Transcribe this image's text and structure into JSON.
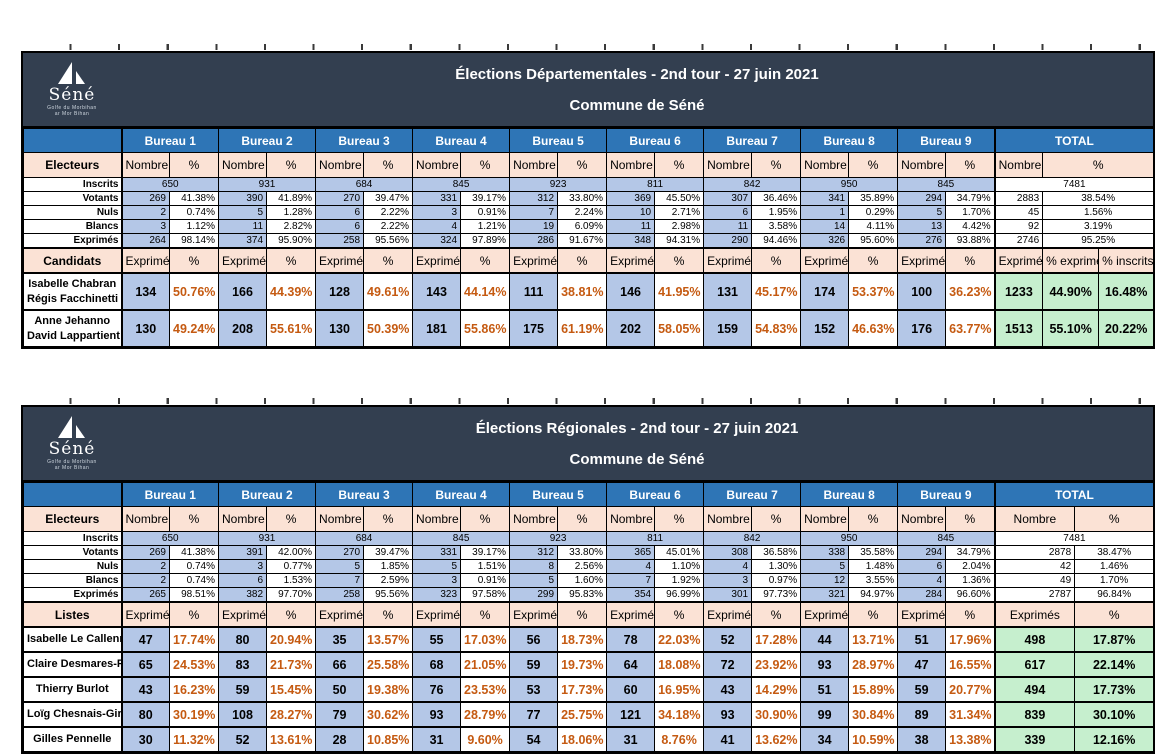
{
  "colors": {
    "header_bg": "#333F50",
    "bureau_header_bg": "#2E75B6",
    "subheader_bg": "#FBE2D5",
    "count_cell_bg": "#B4C7E7",
    "total_cell_bg": "#C6EFCE",
    "percent_text": "#C55A11"
  },
  "logo": {
    "icon": "sailboat-icon",
    "name": "Séné",
    "sub1": "Golfe du Morbihan",
    "sub2": "ar Mor Bihan"
  },
  "tables": [
    {
      "title": "Élections Départementales - 2nd tour - 27 juin 2021",
      "subtitle": "Commune de Séné",
      "bureau_labels": [
        "Bureau 1",
        "Bureau 2",
        "Bureau 3",
        "Bureau 4",
        "Bureau 5",
        "Bureau 6",
        "Bureau 7",
        "Bureau 8",
        "Bureau 9"
      ],
      "total_label": "TOTAL",
      "electors_header": {
        "label": "Electeurs",
        "nombre": "Nombre",
        "pct": "%"
      },
      "elector_rows": [
        {
          "label": "Inscrits",
          "values": [
            "650",
            "931",
            "684",
            "845",
            "923",
            "811",
            "842",
            "950",
            "845"
          ],
          "total_nombre": "7481"
        },
        {
          "label": "Votants",
          "pairs": [
            [
              "269",
              "41.38%"
            ],
            [
              "390",
              "41.89%"
            ],
            [
              "270",
              "39.47%"
            ],
            [
              "331",
              "39.17%"
            ],
            [
              "312",
              "33.80%"
            ],
            [
              "369",
              "45.50%"
            ],
            [
              "307",
              "36.46%"
            ],
            [
              "341",
              "35.89%"
            ],
            [
              "294",
              "34.79%"
            ]
          ],
          "total_nombre": "2883",
          "total_pct": "38.54%"
        },
        {
          "label": "Nuls",
          "pairs": [
            [
              "2",
              "0.74%"
            ],
            [
              "5",
              "1.28%"
            ],
            [
              "6",
              "2.22%"
            ],
            [
              "3",
              "0.91%"
            ],
            [
              "7",
              "2.24%"
            ],
            [
              "10",
              "2.71%"
            ],
            [
              "6",
              "1.95%"
            ],
            [
              "1",
              "0.29%"
            ],
            [
              "5",
              "1.70%"
            ]
          ],
          "total_nombre": "45",
          "total_pct": "1.56%"
        },
        {
          "label": "Blancs",
          "pairs": [
            [
              "3",
              "1.12%"
            ],
            [
              "11",
              "2.82%"
            ],
            [
              "6",
              "2.22%"
            ],
            [
              "4",
              "1.21%"
            ],
            [
              "19",
              "6.09%"
            ],
            [
              "11",
              "2.98%"
            ],
            [
              "11",
              "3.58%"
            ],
            [
              "14",
              "4.11%"
            ],
            [
              "13",
              "4.42%"
            ]
          ],
          "total_nombre": "92",
          "total_pct": "3.19%"
        },
        {
          "label": "Exprimés",
          "pairs": [
            [
              "264",
              "98.14%"
            ],
            [
              "374",
              "95.90%"
            ],
            [
              "258",
              "95.56%"
            ],
            [
              "324",
              "97.89%"
            ],
            [
              "286",
              "91.67%"
            ],
            [
              "348",
              "94.31%"
            ],
            [
              "290",
              "94.46%"
            ],
            [
              "326",
              "95.60%"
            ],
            [
              "276",
              "93.88%"
            ]
          ],
          "total_nombre": "2746",
          "total_pct": "95.25%"
        }
      ],
      "candidates_header": {
        "label": "Candidats",
        "exprimes": "Exprimés",
        "pct": "%",
        "total_cols": [
          "Exprimés",
          "% exprimés",
          "% inscrits"
        ]
      },
      "candidate_rows": [
        {
          "name_lines": [
            "Isabelle Chabran",
            "Régis Facchinetti"
          ],
          "pairs": [
            [
              "134",
              "50.76%"
            ],
            [
              "166",
              "44.39%"
            ],
            [
              "128",
              "49.61%"
            ],
            [
              "143",
              "44.14%"
            ],
            [
              "111",
              "38.81%"
            ],
            [
              "146",
              "41.95%"
            ],
            [
              "131",
              "45.17%"
            ],
            [
              "174",
              "53.37%"
            ],
            [
              "100",
              "36.23%"
            ]
          ],
          "total": [
            "1233",
            "44.90%",
            "16.48%"
          ]
        },
        {
          "name_lines": [
            "Anne Jehanno",
            "David Lappartient"
          ],
          "pairs": [
            [
              "130",
              "49.24%"
            ],
            [
              "208",
              "55.61%"
            ],
            [
              "130",
              "50.39%"
            ],
            [
              "181",
              "55.86%"
            ],
            [
              "175",
              "61.19%"
            ],
            [
              "202",
              "58.05%"
            ],
            [
              "159",
              "54.83%"
            ],
            [
              "152",
              "46.63%"
            ],
            [
              "176",
              "63.77%"
            ]
          ],
          "total": [
            "1513",
            "55.10%",
            "20.22%"
          ]
        }
      ]
    },
    {
      "title": "Élections Régionales - 2nd tour - 27 juin 2021",
      "subtitle": "Commune de Séné",
      "bureau_labels": [
        "Bureau 1",
        "Bureau 2",
        "Bureau 3",
        "Bureau 4",
        "Bureau 5",
        "Bureau 6",
        "Bureau 7",
        "Bureau 8",
        "Bureau 9"
      ],
      "total_label": "TOTAL",
      "electors_header": {
        "label": "Electeurs",
        "nombre": "Nombre",
        "pct": "%"
      },
      "elector_rows": [
        {
          "label": "Inscrits",
          "values": [
            "650",
            "931",
            "684",
            "845",
            "923",
            "811",
            "842",
            "950",
            "845"
          ],
          "total_nombre": "7481"
        },
        {
          "label": "Votants",
          "pairs": [
            [
              "269",
              "41.38%"
            ],
            [
              "391",
              "42.00%"
            ],
            [
              "270",
              "39.47%"
            ],
            [
              "331",
              "39.17%"
            ],
            [
              "312",
              "33.80%"
            ],
            [
              "365",
              "45.01%"
            ],
            [
              "308",
              "36.58%"
            ],
            [
              "338",
              "35.58%"
            ],
            [
              "294",
              "34.79%"
            ]
          ],
          "total_nombre": "2878",
          "total_pct": "38.47%"
        },
        {
          "label": "Nuls",
          "pairs": [
            [
              "2",
              "0.74%"
            ],
            [
              "3",
              "0.77%"
            ],
            [
              "5",
              "1.85%"
            ],
            [
              "5",
              "1.51%"
            ],
            [
              "8",
              "2.56%"
            ],
            [
              "4",
              "1.10%"
            ],
            [
              "4",
              "1.30%"
            ],
            [
              "5",
              "1.48%"
            ],
            [
              "6",
              "2.04%"
            ]
          ],
          "total_nombre": "42",
          "total_pct": "1.46%"
        },
        {
          "label": "Blancs",
          "pairs": [
            [
              "2",
              "0.74%"
            ],
            [
              "6",
              "1.53%"
            ],
            [
              "7",
              "2.59%"
            ],
            [
              "3",
              "0.91%"
            ],
            [
              "5",
              "1.60%"
            ],
            [
              "7",
              "1.92%"
            ],
            [
              "3",
              "0.97%"
            ],
            [
              "12",
              "3.55%"
            ],
            [
              "4",
              "1.36%"
            ]
          ],
          "total_nombre": "49",
          "total_pct": "1.70%"
        },
        {
          "label": "Exprimés",
          "pairs": [
            [
              "265",
              "98.51%"
            ],
            [
              "382",
              "97.70%"
            ],
            [
              "258",
              "95.56%"
            ],
            [
              "323",
              "97.58%"
            ],
            [
              "299",
              "95.83%"
            ],
            [
              "354",
              "96.99%"
            ],
            [
              "301",
              "97.73%"
            ],
            [
              "321",
              "94.97%"
            ],
            [
              "284",
              "96.60%"
            ]
          ],
          "total_nombre": "2787",
          "total_pct": "96.84%"
        }
      ],
      "candidates_header": {
        "label": "Listes",
        "exprimes": "Exprimés",
        "pct": "%",
        "total_cols": [
          "Exprimés",
          "%"
        ]
      },
      "candidate_rows": [
        {
          "name_lines": [
            "Isabelle Le Callennec"
          ],
          "pairs": [
            [
              "47",
              "17.74%"
            ],
            [
              "80",
              "20.94%"
            ],
            [
              "35",
              "13.57%"
            ],
            [
              "55",
              "17.03%"
            ],
            [
              "56",
              "18.73%"
            ],
            [
              "78",
              "22.03%"
            ],
            [
              "52",
              "17.28%"
            ],
            [
              "44",
              "13.71%"
            ],
            [
              "51",
              "17.96%"
            ]
          ],
          "total": [
            "498",
            "17.87%"
          ]
        },
        {
          "name_lines": [
            "Claire Desmares-Poirier"
          ],
          "pairs": [
            [
              "65",
              "24.53%"
            ],
            [
              "83",
              "21.73%"
            ],
            [
              "66",
              "25.58%"
            ],
            [
              "68",
              "21.05%"
            ],
            [
              "59",
              "19.73%"
            ],
            [
              "64",
              "18.08%"
            ],
            [
              "72",
              "23.92%"
            ],
            [
              "93",
              "28.97%"
            ],
            [
              "47",
              "16.55%"
            ]
          ],
          "total": [
            "617",
            "22.14%"
          ]
        },
        {
          "name_lines": [
            "Thierry Burlot"
          ],
          "pairs": [
            [
              "43",
              "16.23%"
            ],
            [
              "59",
              "15.45%"
            ],
            [
              "50",
              "19.38%"
            ],
            [
              "76",
              "23.53%"
            ],
            [
              "53",
              "17.73%"
            ],
            [
              "60",
              "16.95%"
            ],
            [
              "43",
              "14.29%"
            ],
            [
              "51",
              "15.89%"
            ],
            [
              "59",
              "20.77%"
            ]
          ],
          "total": [
            "494",
            "17.73%"
          ]
        },
        {
          "name_lines": [
            "Loïg Chesnais-Girard"
          ],
          "pairs": [
            [
              "80",
              "30.19%"
            ],
            [
              "108",
              "28.27%"
            ],
            [
              "79",
              "30.62%"
            ],
            [
              "93",
              "28.79%"
            ],
            [
              "77",
              "25.75%"
            ],
            [
              "121",
              "34.18%"
            ],
            [
              "93",
              "30.90%"
            ],
            [
              "99",
              "30.84%"
            ],
            [
              "89",
              "31.34%"
            ]
          ],
          "total": [
            "839",
            "30.10%"
          ]
        },
        {
          "name_lines": [
            "Gilles Pennelle"
          ],
          "pairs": [
            [
              "30",
              "11.32%"
            ],
            [
              "52",
              "13.61%"
            ],
            [
              "28",
              "10.85%"
            ],
            [
              "31",
              "9.60%"
            ],
            [
              "54",
              "18.06%"
            ],
            [
              "31",
              "8.76%"
            ],
            [
              "41",
              "13.62%"
            ],
            [
              "34",
              "10.59%"
            ],
            [
              "38",
              "13.38%"
            ]
          ],
          "total": [
            "339",
            "12.16%"
          ]
        }
      ]
    }
  ]
}
